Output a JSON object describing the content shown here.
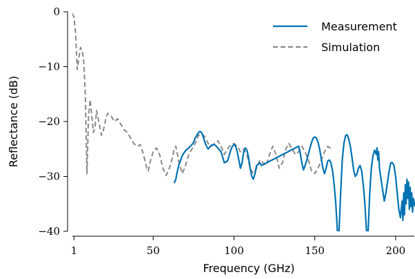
{
  "chart_data": {
    "type": "line",
    "title": "",
    "xlabel": "Frequency (GHz)",
    "ylabel": "Reflectance (dB)",
    "xlim": [
      0,
      212
    ],
    "ylim": [
      -40,
      0
    ],
    "x_ticks": [
      1,
      50,
      100,
      150,
      200
    ],
    "x_tick_labels": [
      "1",
      "50",
      "100",
      "150",
      "200"
    ],
    "y_ticks": [
      0,
      -10,
      -20,
      -30,
      -40
    ],
    "y_tick_labels": [
      "0",
      "−10",
      "−20",
      "−30",
      "−40"
    ],
    "grid": false,
    "legend": "top-right",
    "series": [
      {
        "name": "Measurement",
        "color": "#0072B2",
        "style": "solid",
        "points": [
          [
            63,
            -31.2
          ],
          [
            64,
            -30.5
          ],
          [
            65,
            -29.0
          ],
          [
            66,
            -27.8
          ],
          [
            67,
            -27.0
          ],
          [
            68,
            -26.2
          ],
          [
            70,
            -25.3
          ],
          [
            72,
            -24.8
          ],
          [
            74,
            -24.2
          ],
          [
            75,
            -23.8
          ],
          [
            76,
            -23.0
          ],
          [
            77,
            -22.5
          ],
          [
            78,
            -22.0
          ],
          [
            79,
            -21.8
          ],
          [
            80,
            -22.0
          ],
          [
            81,
            -22.8
          ],
          [
            82,
            -23.8
          ],
          [
            83,
            -24.5
          ],
          [
            84,
            -25.0
          ],
          [
            86,
            -24.3
          ],
          [
            88,
            -24.2
          ],
          [
            90,
            -24.8
          ],
          [
            92,
            -25.5
          ],
          [
            94,
            -27.5
          ],
          [
            96,
            -27.2
          ],
          [
            98,
            -25.2
          ],
          [
            99,
            -24.5
          ],
          [
            100,
            -24.2
          ],
          [
            101,
            -24.5
          ],
          [
            102,
            -25.5
          ],
          [
            103,
            -27.0
          ],
          [
            104,
            -28.5
          ],
          [
            105,
            -27.5
          ],
          [
            106,
            -25.5
          ],
          [
            107,
            -24.8
          ],
          [
            108,
            -25.2
          ],
          [
            109,
            -26.5
          ],
          [
            110,
            -28.5
          ],
          [
            111,
            -30.0
          ],
          [
            112,
            -30.5
          ],
          [
            113,
            -29.5
          ],
          [
            114,
            -28.0
          ],
          [
            115,
            -27.8
          ],
          [
            116,
            -27.5
          ],
          [
            117,
            -28.0
          ],
          [
            140,
            -24.5
          ],
          [
            141,
            -25.8
          ],
          [
            142,
            -27.5
          ],
          [
            143,
            -28.8
          ],
          [
            144,
            -28.0
          ],
          [
            145,
            -27.0
          ],
          [
            146,
            -26.0
          ],
          [
            147,
            -24.8
          ],
          [
            148,
            -23.8
          ],
          [
            149,
            -23.0
          ],
          [
            150,
            -22.8
          ],
          [
            151,
            -23.0
          ],
          [
            152,
            -23.8
          ],
          [
            153,
            -25.0
          ],
          [
            154,
            -26.8
          ],
          [
            155,
            -28.5
          ],
          [
            156,
            -29.5
          ],
          [
            157,
            -28.5
          ],
          [
            158,
            -27.2
          ],
          [
            159,
            -27.0
          ],
          [
            160,
            -27.5
          ],
          [
            161,
            -29.0
          ],
          [
            162,
            -31.5
          ],
          [
            163,
            -35.0
          ],
          [
            164,
            -40.0
          ],
          [
            165,
            -40.0
          ],
          [
            166,
            -33.0
          ],
          [
            167,
            -27.0
          ],
          [
            168,
            -24.0
          ],
          [
            169,
            -22.6
          ],
          [
            170,
            -22.4
          ],
          [
            171,
            -23.2
          ],
          [
            172,
            -24.5
          ],
          [
            173,
            -26.5
          ],
          [
            174,
            -28.8
          ],
          [
            175,
            -30.0
          ],
          [
            176,
            -29.6
          ],
          [
            177,
            -28.5
          ],
          [
            178,
            -28.0
          ],
          [
            179,
            -29.0
          ],
          [
            180,
            -31.5
          ],
          [
            181,
            -35.0
          ],
          [
            182,
            -40.0
          ],
          [
            183,
            -40.0
          ],
          [
            184,
            -33.0
          ],
          [
            185,
            -28.5
          ],
          [
            186,
            -26.2
          ],
          [
            187,
            -25.2
          ],
          [
            188,
            -26.0
          ],
          [
            188.5,
            -24.8
          ],
          [
            189,
            -27.0
          ],
          [
            189.5,
            -25.5
          ],
          [
            190,
            -28.5
          ],
          [
            191,
            -30.5
          ],
          [
            192,
            -32.5
          ],
          [
            193,
            -34.5
          ],
          [
            194,
            -33.0
          ],
          [
            195,
            -31.0
          ],
          [
            196,
            -29.0
          ],
          [
            197,
            -27.5
          ],
          [
            198,
            -27.5
          ],
          [
            199,
            -28.0
          ],
          [
            200,
            -30.0
          ],
          [
            201,
            -33.0
          ],
          [
            202,
            -36.0
          ],
          [
            203,
            -37.5
          ],
          [
            204,
            -34.5
          ],
          [
            204.5,
            -38.0
          ],
          [
            205,
            -33.0
          ],
          [
            205.5,
            -37.0
          ],
          [
            206,
            -31.5
          ],
          [
            206.5,
            -35.0
          ],
          [
            207,
            -30.5
          ],
          [
            207.5,
            -34.0
          ],
          [
            208,
            -31.0
          ],
          [
            208.5,
            -36.0
          ],
          [
            209,
            -32.0
          ],
          [
            209.5,
            -35.5
          ],
          [
            210,
            -33.0
          ],
          [
            210.5,
            -36.5
          ],
          [
            211,
            -34.0
          ],
          [
            212,
            -35.5
          ]
        ]
      },
      {
        "name": "Simulation",
        "color": "#888888",
        "style": "dashed",
        "points": [
          [
            0,
            -0.3
          ],
          [
            1,
            -1.0
          ],
          [
            2,
            -4.0
          ],
          [
            3,
            -10.5
          ],
          [
            4,
            -8.5
          ],
          [
            5,
            -6.5
          ],
          [
            6,
            -7.0
          ],
          [
            7,
            -9.0
          ],
          [
            8,
            -15.0
          ],
          [
            9,
            -29.5
          ],
          [
            10,
            -19.0
          ],
          [
            11,
            -16.0
          ],
          [
            12,
            -19.0
          ],
          [
            13,
            -22.0
          ],
          [
            14,
            -21.0
          ],
          [
            15,
            -18.0
          ],
          [
            16,
            -19.5
          ],
          [
            17,
            -21.0
          ],
          [
            18,
            -22.5
          ],
          [
            19,
            -21.8
          ],
          [
            20,
            -20.5
          ],
          [
            21,
            -19.0
          ],
          [
            22,
            -18.5
          ],
          [
            24,
            -19.0
          ],
          [
            26,
            -20.0
          ],
          [
            28,
            -19.5
          ],
          [
            30,
            -20.5
          ],
          [
            32,
            -21.5
          ],
          [
            34,
            -22.0
          ],
          [
            36,
            -23.0
          ],
          [
            38,
            -24.0
          ],
          [
            40,
            -24.5
          ],
          [
            42,
            -24.2
          ],
          [
            44,
            -26.0
          ],
          [
            46,
            -28.5
          ],
          [
            47,
            -29.0
          ],
          [
            48,
            -27.5
          ],
          [
            50,
            -25.5
          ],
          [
            52,
            -24.8
          ],
          [
            54,
            -26.0
          ],
          [
            56,
            -28.5
          ],
          [
            58,
            -29.8
          ],
          [
            60,
            -28.5
          ],
          [
            62,
            -26.5
          ],
          [
            63,
            -25.0
          ],
          [
            64,
            -24.5
          ],
          [
            65,
            -26.0
          ],
          [
            66,
            -27.5
          ],
          [
            68,
            -29.5
          ],
          [
            70,
            -28.0
          ],
          [
            72,
            -26.0
          ],
          [
            74,
            -25.0
          ],
          [
            76,
            -24.0
          ],
          [
            78,
            -22.5
          ],
          [
            80,
            -22.2
          ],
          [
            82,
            -22.8
          ],
          [
            84,
            -24.0
          ],
          [
            86,
            -24.5
          ],
          [
            88,
            -24.0
          ],
          [
            90,
            -23.5
          ],
          [
            92,
            -24.5
          ],
          [
            94,
            -26.0
          ],
          [
            96,
            -25.0
          ],
          [
            98,
            -24.2
          ],
          [
            100,
            -24.0
          ],
          [
            102,
            -24.5
          ],
          [
            104,
            -25.5
          ],
          [
            106,
            -25.0
          ],
          [
            108,
            -26.0
          ],
          [
            110,
            -28.5
          ],
          [
            112,
            -29.5
          ],
          [
            114,
            -28.5
          ],
          [
            116,
            -27.0
          ],
          [
            118,
            -27.5
          ],
          [
            120,
            -28.0
          ],
          [
            122,
            -26.0
          ],
          [
            124,
            -24.5
          ],
          [
            126,
            -26.0
          ],
          [
            128,
            -28.5
          ],
          [
            130,
            -27.5
          ],
          [
            132,
            -25.0
          ],
          [
            134,
            -24.0
          ],
          [
            136,
            -25.0
          ],
          [
            138,
            -26.0
          ],
          [
            140,
            -25.5
          ],
          [
            142,
            -24.5
          ],
          [
            144,
            -25.5
          ],
          [
            146,
            -27.0
          ],
          [
            148,
            -29.0
          ],
          [
            150,
            -29.5
          ],
          [
            152,
            -28.5
          ],
          [
            154,
            -27.0
          ],
          [
            156,
            -25.5
          ],
          [
            158,
            -24.5
          ],
          [
            160,
            -25.0
          ]
        ]
      }
    ]
  }
}
